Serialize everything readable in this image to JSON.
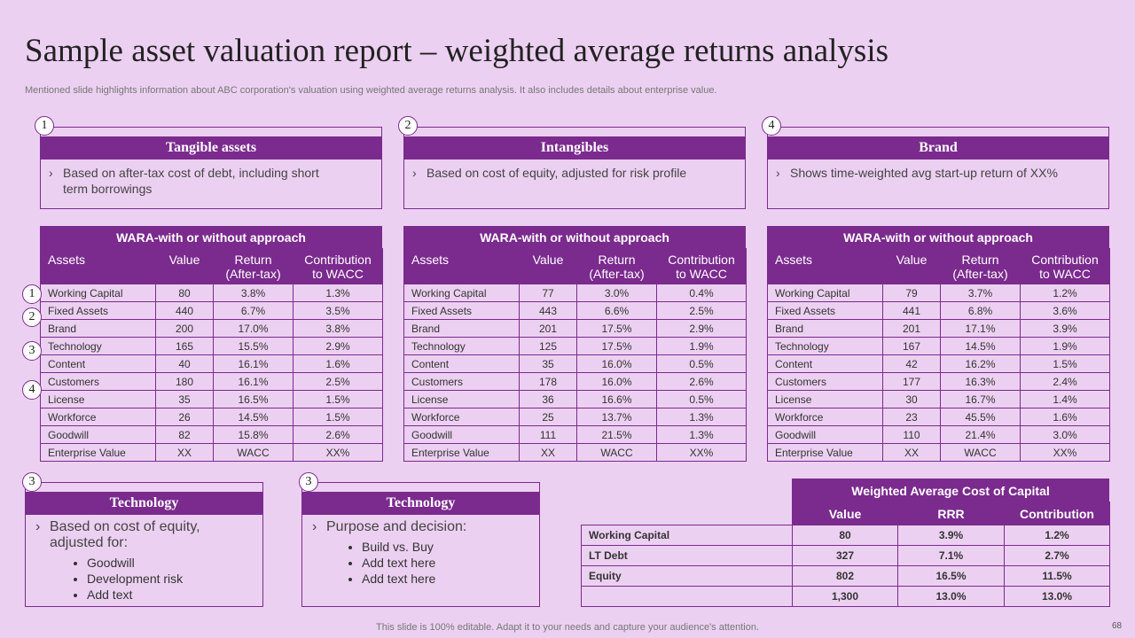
{
  "title": "Sample asset valuation report – weighted average returns analysis",
  "subtitle": "Mentioned slide highlights information about ABC corporation's valuation using weighted average returns analysis. It also includes details about enterprise value.",
  "cards": [
    {
      "number": "1",
      "title": "Tangible assets",
      "text": "Based on after-tax cost of debt, including short term borrowings"
    },
    {
      "number": "2",
      "title": "Intangibles",
      "text": "Based on cost of equity, adjusted for risk profile"
    },
    {
      "number": "4",
      "title": "Brand",
      "text": "Shows time-weighted avg start-up return of XX%"
    }
  ],
  "side_numbers": [
    "1",
    "2",
    "3",
    "4"
  ],
  "tables": [
    {
      "title": "WARA-with or without approach",
      "headers": [
        "Assets",
        "Value",
        "Return (After-tax)",
        "Contribution to WACC"
      ],
      "rows": [
        [
          "Working Capital",
          "80",
          "3.8%",
          "1.3%"
        ],
        [
          "Fixed Assets",
          "440",
          "6.7%",
          "3.5%"
        ],
        [
          "Brand",
          "200",
          "17.0%",
          "3.8%"
        ],
        [
          "Technology",
          "165",
          "15.5%",
          "2.9%"
        ],
        [
          "Content",
          "40",
          "16.1%",
          "1.6%"
        ],
        [
          "Customers",
          "180",
          "16.1%",
          "2.5%"
        ],
        [
          "License",
          "35",
          "16.5%",
          "1.5%"
        ],
        [
          "Workforce",
          "26",
          "14.5%",
          "1.5%"
        ],
        [
          "Goodwill",
          "82",
          "15.8%",
          "2.6%"
        ],
        [
          "Enterprise Value",
          "XX",
          "WACC",
          "XX%"
        ]
      ]
    },
    {
      "title": "WARA-with or without approach",
      "headers": [
        "Assets",
        "Value",
        "Return (After-tax)",
        "Contribution to WACC"
      ],
      "rows": [
        [
          "Working Capital",
          "77",
          "3.0%",
          "0.4%"
        ],
        [
          "Fixed Assets",
          "443",
          "6.6%",
          "2.5%"
        ],
        [
          "Brand",
          "201",
          "17.5%",
          "2.9%"
        ],
        [
          "Technology",
          "125",
          "17.5%",
          "1.9%"
        ],
        [
          "Content",
          "35",
          "16.0%",
          "0.5%"
        ],
        [
          "Customers",
          "178",
          "16.0%",
          "2.6%"
        ],
        [
          "License",
          "36",
          "16.6%",
          "0.5%"
        ],
        [
          "Workforce",
          "25",
          "13.7%",
          "1.3%"
        ],
        [
          "Goodwill",
          "111",
          "21.5%",
          "1.3%"
        ],
        [
          "Enterprise Value",
          "XX",
          "WACC",
          "XX%"
        ]
      ]
    },
    {
      "title": "WARA-with or without approach",
      "headers": [
        "Assets",
        "Value",
        "Return (After-tax)",
        "Contribution to WACC"
      ],
      "rows": [
        [
          "Working Capital",
          "79",
          "3.7%",
          "1.2%"
        ],
        [
          "Fixed Assets",
          "441",
          "6.8%",
          "3.6%"
        ],
        [
          "Brand",
          "201",
          "17.1%",
          "3.9%"
        ],
        [
          "Technology",
          "167",
          "14.5%",
          "1.9%"
        ],
        [
          "Content",
          "42",
          "16.2%",
          "1.5%"
        ],
        [
          "Customers",
          "177",
          "16.3%",
          "2.4%"
        ],
        [
          "License",
          "30",
          "16.7%",
          "1.4%"
        ],
        [
          "Workforce",
          "23",
          "45.5%",
          "1.6%"
        ],
        [
          "Goodwill",
          "110",
          "21.4%",
          "3.0%"
        ],
        [
          "Enterprise Value",
          "XX",
          "WACC",
          "XX%"
        ]
      ]
    }
  ],
  "bottom_cards": [
    {
      "number": "3",
      "title": "Technology",
      "text": "Based on cost of equity, adjusted for:",
      "bullets": [
        "Goodwill",
        "Development risk",
        "Add text"
      ]
    },
    {
      "number": "3",
      "title": "Technology",
      "text": "Purpose and decision:",
      "bullets": [
        "Build vs. Buy",
        "Add text here",
        "Add text here"
      ]
    }
  ],
  "wacc": {
    "title": "Weighted Average Cost of Capital",
    "headers": [
      "Value",
      "RRR",
      "Contribution"
    ],
    "rows": [
      [
        "Working Capital",
        "80",
        "3.9%",
        "1.2%"
      ],
      [
        "LT Debt",
        "327",
        "7.1%",
        "2.7%"
      ],
      [
        "Equity",
        "802",
        "16.5%",
        "11.5%"
      ]
    ],
    "total": [
      "1,300",
      "13.0%",
      "13.0%"
    ]
  },
  "footer": "This slide is 100% editable. Adapt it to your needs and capture your audience's attention.",
  "page_number": "68"
}
